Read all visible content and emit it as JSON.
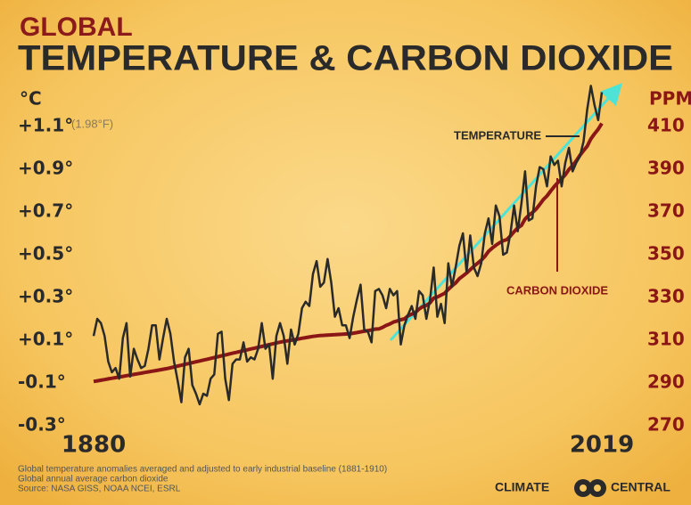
{
  "chart_data": {
    "type": "line",
    "kicker": "GLOBAL",
    "title": "TEMPERATURE & CARBON DIOXIDE",
    "y_label": "°C",
    "y2_label": "PPM",
    "y_note": "(1.98°F)",
    "footnotes": [
      "Global temperature anomalies averaged and adjusted to early industrial baseline (1881-1910)",
      "Global annual average carbon dioxide",
      "Source: NASA GISS, NOAA NCEI, ESRL"
    ],
    "brand": [
      "CLIMATE",
      "CENTRAL"
    ],
    "xlim": [
      1880,
      2019
    ],
    "xticks": [
      1880,
      2019
    ],
    "ylim": [
      -0.35,
      1.3
    ],
    "yticks": [
      {
        "value": -0.3,
        "label": "-0.3°"
      },
      {
        "value": -0.1,
        "label": "-0.1°"
      },
      {
        "value": 0.1,
        "label": "+0.1°"
      },
      {
        "value": 0.3,
        "label": "+0.3°"
      },
      {
        "value": 0.5,
        "label": "+0.5°"
      },
      {
        "value": 0.7,
        "label": "+0.7°"
      },
      {
        "value": 0.9,
        "label": "+0.9°"
      },
      {
        "value": 1.1,
        "label": "+1.1°"
      }
    ],
    "y2lim": [
      265,
      430
    ],
    "y2ticks": [
      270,
      290,
      310,
      330,
      350,
      370,
      390,
      410
    ],
    "x": [
      1880,
      1881,
      1882,
      1883,
      1884,
      1885,
      1886,
      1887,
      1888,
      1889,
      1890,
      1891,
      1892,
      1893,
      1894,
      1895,
      1896,
      1897,
      1898,
      1899,
      1900,
      1901,
      1902,
      1903,
      1904,
      1905,
      1906,
      1907,
      1908,
      1909,
      1910,
      1911,
      1912,
      1913,
      1914,
      1915,
      1916,
      1917,
      1918,
      1919,
      1920,
      1921,
      1922,
      1923,
      1924,
      1925,
      1926,
      1927,
      1928,
      1929,
      1930,
      1931,
      1932,
      1933,
      1934,
      1935,
      1936,
      1937,
      1938,
      1939,
      1940,
      1941,
      1942,
      1943,
      1944,
      1945,
      1946,
      1947,
      1948,
      1949,
      1950,
      1951,
      1952,
      1953,
      1954,
      1955,
      1956,
      1957,
      1958,
      1959,
      1960,
      1961,
      1962,
      1963,
      1964,
      1965,
      1966,
      1967,
      1968,
      1969,
      1970,
      1971,
      1972,
      1973,
      1974,
      1975,
      1976,
      1977,
      1978,
      1979,
      1980,
      1981,
      1982,
      1983,
      1984,
      1985,
      1986,
      1987,
      1988,
      1989,
      1990,
      1991,
      1992,
      1993,
      1994,
      1995,
      1996,
      1997,
      1998,
      1999,
      2000,
      2001,
      2002,
      2003,
      2004,
      2005,
      2006,
      2007,
      2008,
      2009,
      2010,
      2011,
      2012,
      2013,
      2014,
      2015,
      2016,
      2017,
      2018,
      2019
    ],
    "series": [
      {
        "name": "TEMPERATURE",
        "color": "#2a2a2a",
        "values": [
          0.12,
          0.2,
          0.18,
          0.12,
          0.0,
          -0.05,
          -0.03,
          -0.08,
          0.11,
          0.18,
          -0.07,
          0.06,
          0.01,
          -0.03,
          -0.02,
          0.06,
          0.17,
          0.17,
          0.01,
          0.11,
          0.2,
          0.13,
          0.0,
          -0.09,
          -0.19,
          0.02,
          0.06,
          -0.11,
          -0.15,
          -0.2,
          -0.15,
          -0.16,
          -0.08,
          -0.06,
          0.13,
          0.14,
          -0.08,
          -0.18,
          -0.01,
          0.01,
          0.01,
          0.09,
          0.0,
          0.02,
          0.01,
          0.06,
          0.18,
          0.06,
          0.08,
          -0.08,
          0.12,
          0.18,
          0.12,
          -0.01,
          0.15,
          0.08,
          0.13,
          0.25,
          0.28,
          0.26,
          0.41,
          0.47,
          0.35,
          0.37,
          0.48,
          0.37,
          0.21,
          0.25,
          0.17,
          0.17,
          0.11,
          0.21,
          0.29,
          0.36,
          0.15,
          0.14,
          0.09,
          0.33,
          0.34,
          0.31,
          0.25,
          0.34,
          0.31,
          0.33,
          0.08,
          0.17,
          0.22,
          0.26,
          0.2,
          0.33,
          0.31,
          0.2,
          0.29,
          0.44,
          0.21,
          0.27,
          0.18,
          0.46,
          0.35,
          0.44,
          0.54,
          0.6,
          0.42,
          0.59,
          0.44,
          0.4,
          0.46,
          0.6,
          0.67,
          0.55,
          0.73,
          0.68,
          0.5,
          0.51,
          0.6,
          0.73,
          0.61,
          0.74,
          0.89,
          0.66,
          0.67,
          0.82,
          0.91,
          0.9,
          0.82,
          0.96,
          0.92,
          0.94,
          0.82,
          0.93,
          1.0,
          0.89,
          0.93,
          0.96,
          1.03,
          1.18,
          1.29,
          1.2,
          1.13,
          1.26
        ]
      },
      {
        "name": "CARBON DIOXIDE",
        "color": "#8b1616",
        "axis": "y2",
        "values": [
          290.7,
          291.0,
          291.3,
          291.6,
          291.9,
          292.2,
          292.5,
          292.8,
          293.1,
          293.4,
          293.7,
          294.0,
          294.3,
          294.6,
          294.9,
          295.2,
          295.5,
          295.8,
          296.1,
          296.4,
          296.7,
          297.1,
          297.5,
          297.9,
          298.3,
          298.7,
          299.1,
          299.5,
          299.9,
          300.3,
          300.7,
          301.1,
          301.5,
          301.9,
          302.3,
          302.7,
          303.1,
          303.5,
          303.9,
          304.3,
          304.7,
          305.1,
          305.5,
          305.9,
          306.3,
          306.7,
          307.1,
          307.5,
          307.9,
          308.3,
          308.7,
          309.1,
          309.4,
          309.7,
          310.0,
          310.3,
          310.6,
          310.9,
          311.2,
          311.5,
          311.8,
          312.0,
          312.2,
          312.3,
          312.4,
          312.5,
          312.6,
          312.7,
          312.8,
          312.9,
          313.0,
          313.3,
          313.6,
          313.9,
          314.2,
          314.5,
          314.8,
          315.2,
          315.3,
          316.0,
          316.9,
          317.6,
          318.5,
          319.0,
          319.6,
          320.0,
          321.4,
          322.2,
          323.0,
          324.6,
          325.7,
          326.3,
          327.5,
          329.7,
          330.2,
          331.1,
          332.0,
          333.8,
          335.4,
          336.8,
          338.8,
          340.1,
          341.4,
          343.0,
          344.6,
          346.0,
          347.4,
          349.2,
          351.6,
          353.1,
          354.4,
          355.6,
          356.5,
          357.1,
          358.8,
          360.8,
          362.6,
          363.7,
          366.7,
          368.4,
          369.7,
          371.3,
          373.5,
          375.8,
          377.5,
          379.8,
          381.9,
          383.8,
          385.6,
          387.4,
          389.9,
          391.7,
          393.9,
          396.5,
          398.7,
          400.8,
          404.2,
          406.6,
          408.7,
          411.4
        ]
      }
    ]
  }
}
